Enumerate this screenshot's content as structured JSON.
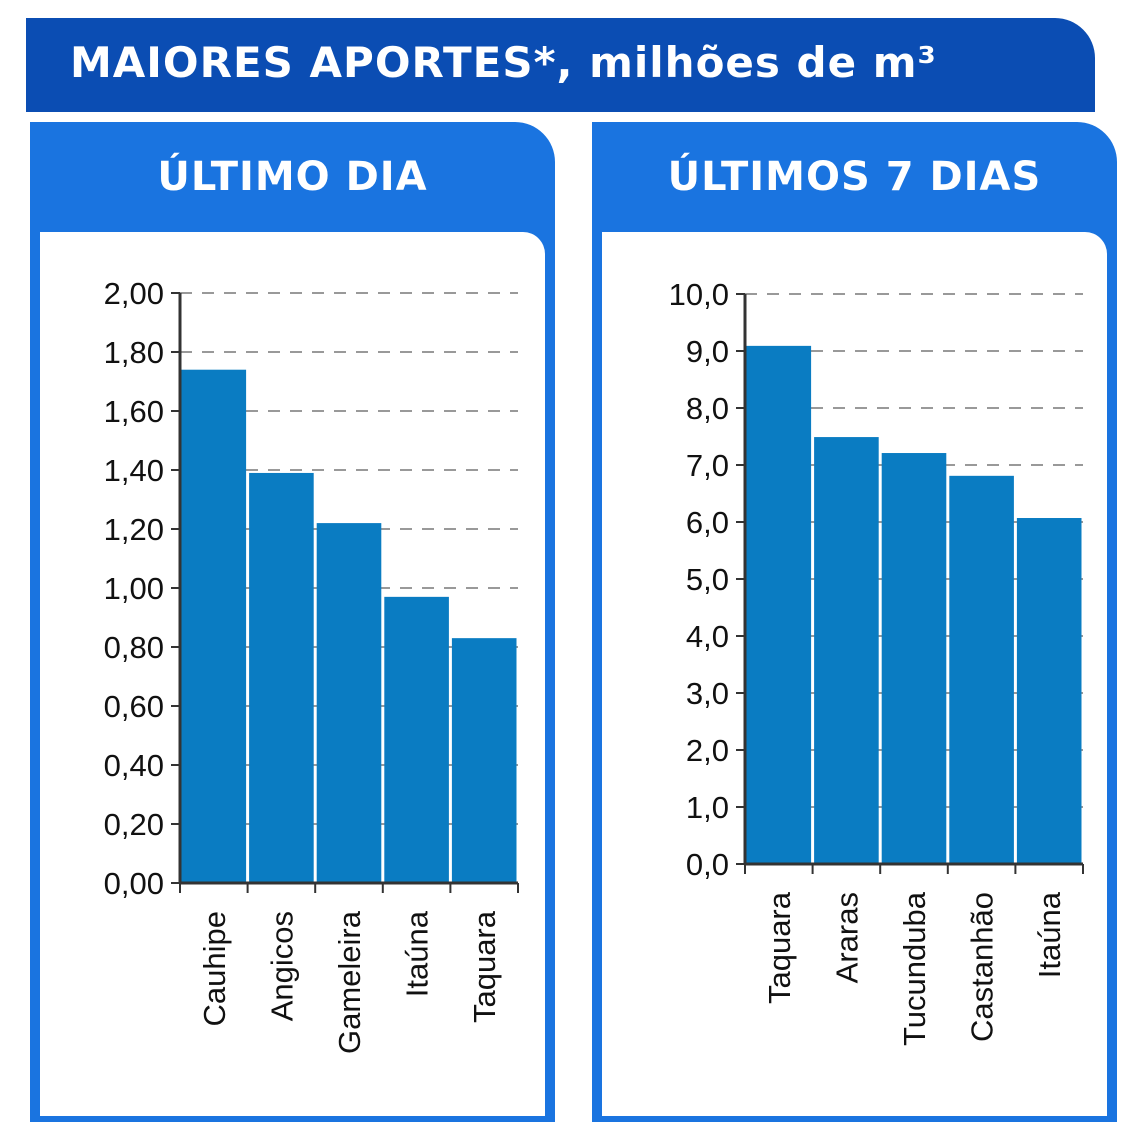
{
  "title": "MAIORES APORTES*, milhões de m³",
  "colors": {
    "header": "#0b4db3",
    "panel": "#1a74e0",
    "bar": "#0a7cc2"
  },
  "chart_data": [
    {
      "type": "bar",
      "title": "ÚLTIMO DIA",
      "categories": [
        "Cauhipe",
        "Angicos",
        "Gameleira",
        "Itaúna",
        "Taquara"
      ],
      "values": [
        1.74,
        1.39,
        1.22,
        0.97,
        0.83
      ],
      "ylim": [
        0,
        2
      ],
      "yticks": [
        "0,00",
        "0,20",
        "0,40",
        "0,60",
        "0,80",
        "1,00",
        "1,20",
        "1,40",
        "1,60",
        "1,80",
        "2,00"
      ],
      "grid": true
    },
    {
      "type": "bar",
      "title": "ÚLTIMOS 7 DIAS",
      "categories": [
        "Taquara",
        "Araras",
        "Tucunduba",
        "Castanhão",
        "Itaúna"
      ],
      "values": [
        9.09,
        7.49,
        7.21,
        6.81,
        6.07
      ],
      "ylim": [
        0,
        10
      ],
      "yticks": [
        "0,0",
        "1,0",
        "2,0",
        "3,0",
        "4,0",
        "5,0",
        "6,0",
        "7,0",
        "8,0",
        "9,0",
        "10,0"
      ],
      "grid": true
    }
  ]
}
